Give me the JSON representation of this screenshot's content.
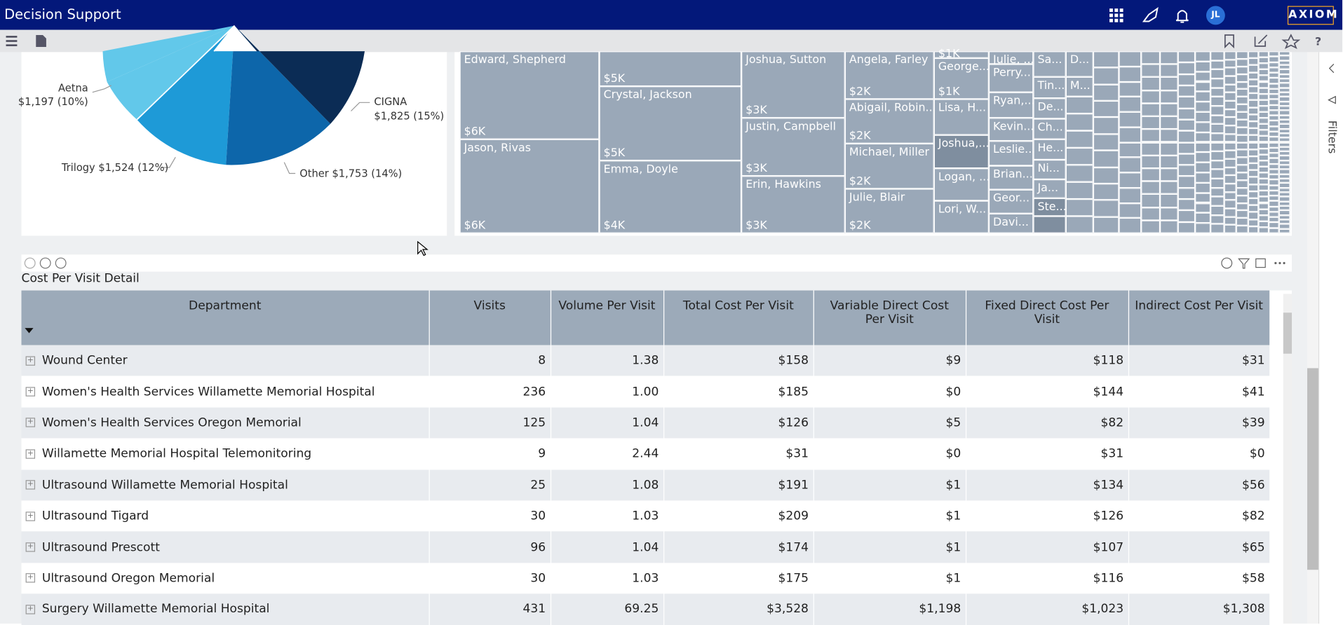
{
  "header": {
    "title": "Decision Support",
    "user_initials": "JL",
    "logo": "AXIOM"
  },
  "side_panel": {
    "label": "Filters"
  },
  "pie": {
    "labels": [
      {
        "name": "Aetna",
        "value": "$1,197 (10%)"
      },
      {
        "name": "CIGNA",
        "value": "$1,825 (15%)"
      },
      {
        "name": "Trilogy",
        "value": "$1,524 (12%)"
      },
      {
        "name": "Other",
        "value": "$1,753 (14%)"
      }
    ]
  },
  "treemap": {
    "cells": [
      {
        "name": "Edward, Shepherd",
        "value": "$6K"
      },
      {
        "name": "Jason, Rivas",
        "value": "$6K"
      },
      {
        "name": null,
        "value": "$5K"
      },
      {
        "name": "Crystal, Jackson",
        "value": "$5K"
      },
      {
        "name": "Emma, Doyle",
        "value": "$4K"
      },
      {
        "name": "Joshua, Sutton",
        "value": "$3K"
      },
      {
        "name": "Justin, Campbell",
        "value": "$3K"
      },
      {
        "name": "Erin, Hawkins",
        "value": "$3K"
      },
      {
        "name": "Angela, Farley",
        "value": "$2K"
      },
      {
        "name": "Abigail, Robin...",
        "value": "$2K"
      },
      {
        "name": "Michael, Miller",
        "value": "$2K"
      },
      {
        "name": "Julie, Blair",
        "value": "$2K"
      },
      {
        "name": "$1K",
        "value": null
      },
      {
        "name": "George...",
        "value": "$1K"
      },
      {
        "name": "Lisa, H...",
        "value": null
      },
      {
        "name": "Joshua,...",
        "value": null
      },
      {
        "name": "Logan, ...",
        "value": null
      },
      {
        "name": "Lori, W...",
        "value": null
      },
      {
        "name": "Julie, ...",
        "value": null
      },
      {
        "name": "Perry...",
        "value": null
      },
      {
        "name": "Ryan,...",
        "value": null
      },
      {
        "name": "Kevin...",
        "value": null
      },
      {
        "name": "Leslie...",
        "value": null
      },
      {
        "name": "Brian...",
        "value": null
      },
      {
        "name": "Geor...",
        "value": null
      },
      {
        "name": "Davi...",
        "value": null
      },
      {
        "name": "Sa...",
        "value": null
      },
      {
        "name": "Tin...",
        "value": null
      },
      {
        "name": "De...",
        "value": null
      },
      {
        "name": "Ch...",
        "value": null
      },
      {
        "name": "He...",
        "value": null
      },
      {
        "name": "Ni...",
        "value": null
      },
      {
        "name": "Ja...",
        "value": null
      },
      {
        "name": "Ste...",
        "value": null
      },
      {
        "name": "D...",
        "value": null
      },
      {
        "name": "M...",
        "value": null
      }
    ]
  },
  "table": {
    "title": "Cost Per Visit Detail",
    "columns": [
      "Department",
      "Visits",
      "Volume Per Visit",
      "Total Cost Per Visit",
      "Variable Direct Cost Per Visit",
      "Fixed Direct Cost Per Visit",
      "Indirect Cost Per Visit"
    ],
    "rows": [
      [
        "Wound Center",
        "8",
        "1.38",
        "$158",
        "$9",
        "$118",
        "$31"
      ],
      [
        "Women's Health Services Willamette Memorial Hospital",
        "236",
        "1.00",
        "$185",
        "$0",
        "$144",
        "$41"
      ],
      [
        "Women's Health Services Oregon Memorial",
        "125",
        "1.04",
        "$126",
        "$5",
        "$82",
        "$39"
      ],
      [
        "Willamette Memorial Hospital Telemonitoring",
        "9",
        "2.44",
        "$31",
        "$0",
        "$31",
        "$0"
      ],
      [
        "Ultrasound Willamette Memorial Hospital",
        "25",
        "1.08",
        "$191",
        "$1",
        "$134",
        "$56"
      ],
      [
        "Ultrasound Tigard",
        "30",
        "1.03",
        "$209",
        "$1",
        "$126",
        "$82"
      ],
      [
        "Ultrasound Prescott",
        "96",
        "1.04",
        "$174",
        "$1",
        "$107",
        "$65"
      ],
      [
        "Ultrasound Oregon Memorial",
        "30",
        "1.03",
        "$175",
        "$1",
        "$116",
        "$58"
      ],
      [
        "Surgery Willamette Memorial Hospital",
        "431",
        "69.25",
        "$3,528",
        "$1,198",
        "$1,023",
        "$1,308"
      ]
    ]
  }
}
